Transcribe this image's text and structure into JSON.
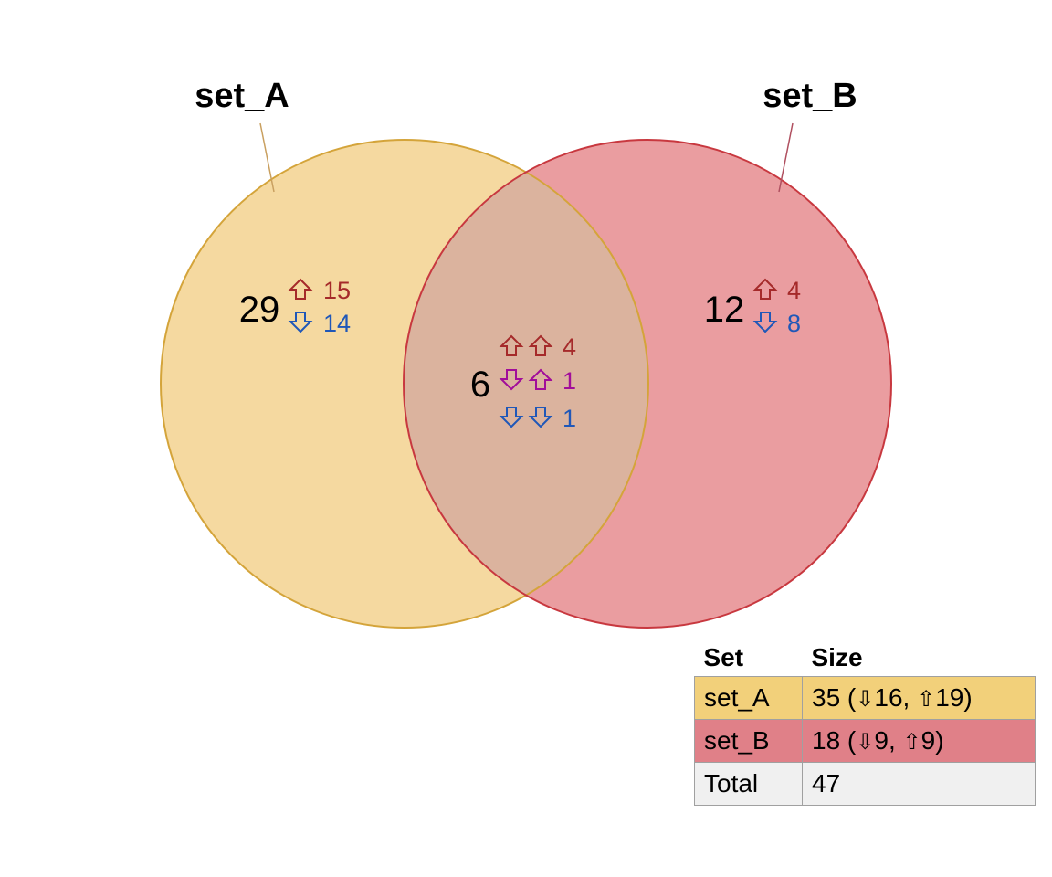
{
  "sets": [
    {
      "name": "set_A",
      "fill": "#f5d9a0",
      "stroke": "#d4a43a",
      "label_line_color": "#c9a060"
    },
    {
      "name": "set_B",
      "fill": "#ea9da0",
      "stroke": "#c8383f",
      "label_line_color": "#b05060"
    }
  ],
  "overlap_fill": "#dbb39e",
  "overlap_stroke": "#b0604a",
  "arrow_up_icon": "up-arrow-icon",
  "arrow_down_icon": "down-arrow-icon",
  "colors": {
    "up": "#a52a2a",
    "down": "#1f57b8",
    "mixed": "#a10d9a"
  },
  "regions": {
    "a_only": {
      "total": "29",
      "up": "15",
      "down": "14"
    },
    "b_only": {
      "total": "12",
      "up": "4",
      "down": "8"
    },
    "both": {
      "total": "6",
      "up_up": "4",
      "down_up": "1",
      "down_down": "1"
    }
  },
  "table": {
    "header_set": "Set",
    "header_size": "Size",
    "rows": [
      {
        "set": "set_A",
        "total": "35",
        "down": "16",
        "up": "19",
        "color": "#f2d07a"
      },
      {
        "set": "set_B",
        "total": "18",
        "down": "9",
        "up": "9",
        "color": "#e08088"
      }
    ],
    "total_label": "Total",
    "total_value": "47"
  }
}
